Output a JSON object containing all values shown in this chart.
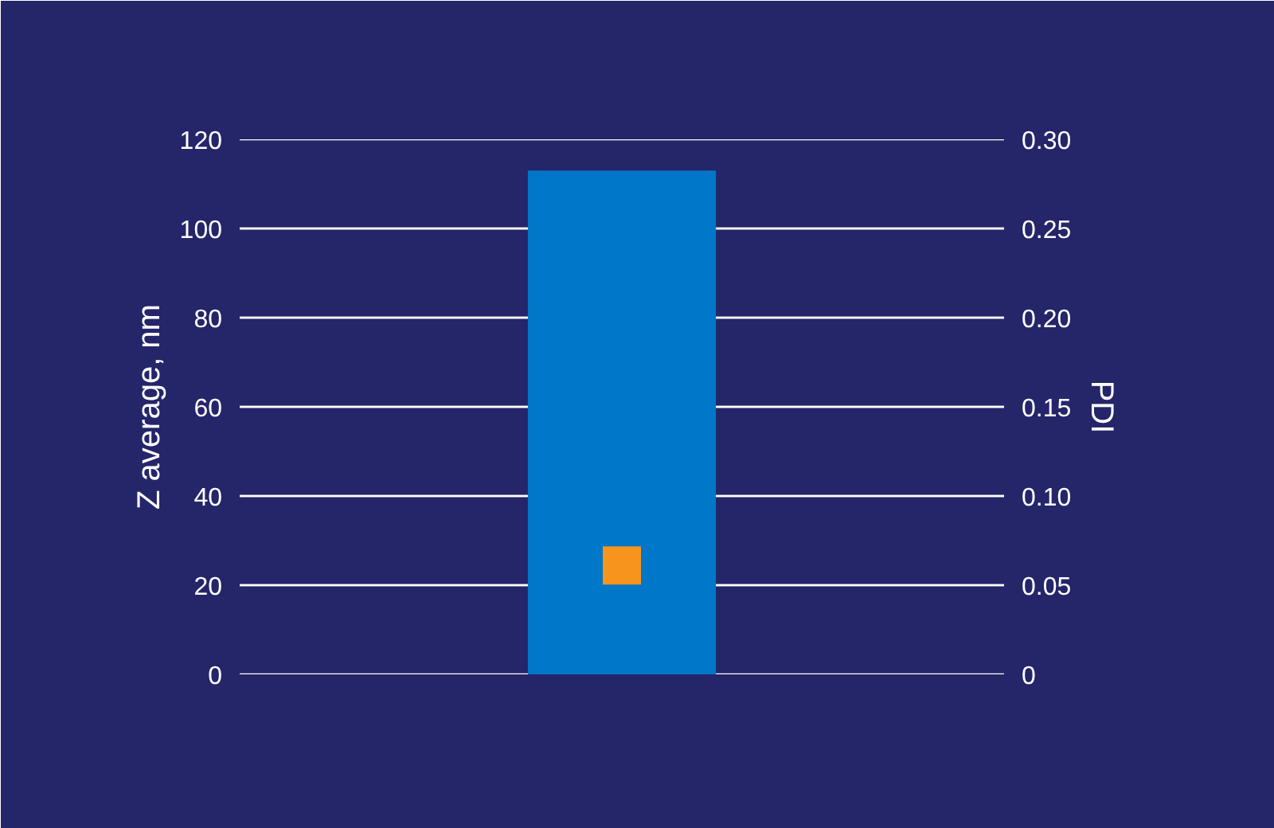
{
  "chart_data": {
    "type": "bar",
    "categories": [
      null
    ],
    "ylabel": "Z average, nm",
    "y2label": "PDI",
    "ylim": [
      0,
      120
    ],
    "yticks": [
      0,
      20,
      40,
      60,
      80,
      100,
      120
    ],
    "y2lim": [
      0,
      0.3
    ],
    "y2ticks": [
      0,
      {
        "value": 0.05,
        "label": "0.05"
      },
      {
        "value": 0.1,
        "label": "0.10"
      },
      {
        "value": 0.15,
        "label": "0.15"
      },
      {
        "value": 0.2,
        "label": "0.20"
      },
      {
        "value": 0.25,
        "label": "0.25"
      },
      {
        "value": 0.3,
        "label": "0.30"
      }
    ],
    "grid": "y",
    "marker": "square",
    "series": [
      {
        "color": "#0077c8",
        "values": [
          113
        ]
      },
      {
        "type": "scatter",
        "axis": "y2",
        "color": "#f7941d",
        "values": [
          0.061
        ]
      }
    ]
  }
}
